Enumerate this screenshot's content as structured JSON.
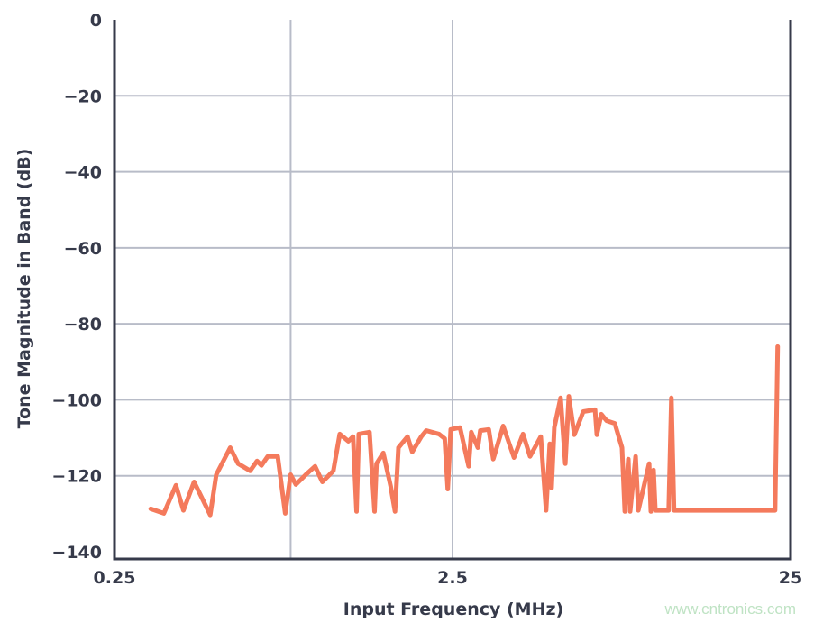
{
  "chart_data": {
    "type": "line",
    "title": "",
    "xlabel": "Input Frequency (MHz)",
    "ylabel": "Tone Magnitude in Band (dB)",
    "xscale": "log",
    "xlim": [
      0.25,
      25
    ],
    "ylim": [
      -140,
      0
    ],
    "x_ticks": [
      0.25,
      2.5,
      25
    ],
    "x_tick_labels": [
      "0.25",
      "2.5",
      "25"
    ],
    "y_ticks": [
      0,
      -20,
      -40,
      -60,
      -80,
      -100,
      -120,
      -140
    ],
    "y_tick_labels": [
      "0",
      "−20",
      "−40",
      "−60",
      "−80",
      "−100",
      "−120",
      "−140"
    ],
    "x_gridlines": [
      0.83,
      2.5
    ],
    "y_gridlines": [
      -20,
      -40,
      -60,
      -80,
      -100,
      -120
    ],
    "grid": true,
    "colors": {
      "series": "#f47a5c",
      "axis": "#363a4a",
      "grid": "#b8bcc8"
    },
    "series": [
      {
        "x": [
          0.32,
          0.35,
          0.38,
          0.4,
          0.43,
          0.48,
          0.5,
          0.55,
          0.58,
          0.63,
          0.66,
          0.68,
          0.71,
          0.76,
          0.8,
          0.83,
          0.86,
          0.92,
          0.98,
          1.03,
          1.11,
          1.16,
          1.23,
          1.27,
          1.3,
          1.32,
          1.42,
          1.47,
          1.49,
          1.56,
          1.64,
          1.69,
          1.73,
          1.84,
          1.9,
          2.02,
          2.09,
          2.28,
          2.37,
          2.42,
          2.47,
          2.63,
          2.79,
          2.84,
          2.97,
          3.02,
          3.2,
          3.3,
          3.53,
          3.8,
          4.04,
          4.24,
          4.56,
          4.73,
          4.85,
          4.91,
          5.0,
          5.22,
          5.39,
          5.52,
          5.73,
          6.09,
          6.6,
          6.68,
          6.89,
          7.14,
          7.55,
          7.93,
          8.08,
          8.28,
          8.38,
          8.7,
          8.86,
          9.54,
          9.65,
          9.83,
          9.95,
          10.9,
          11.1,
          11.3,
          22.5,
          22.9
        ],
        "y": [
          -128.7,
          -129.9,
          -122.5,
          -129.1,
          -121.6,
          -130.3,
          -119.7,
          -112.6,
          -116.8,
          -118.7,
          -116.1,
          -117.3,
          -114.9,
          -114.9,
          -129.9,
          -119.7,
          -122.3,
          -119.7,
          -117.5,
          -121.6,
          -118.7,
          -109.0,
          -110.9,
          -109.7,
          -129.4,
          -109.0,
          -108.5,
          -129.4,
          -116.8,
          -114.0,
          -122.7,
          -129.4,
          -112.6,
          -109.7,
          -113.7,
          -109.7,
          -108.1,
          -109.0,
          -110.2,
          -123.5,
          -107.8,
          -107.3,
          -117.5,
          -108.5,
          -112.6,
          -108.1,
          -107.8,
          -115.6,
          -106.9,
          -115.2,
          -109.0,
          -114.9,
          -109.7,
          -129.1,
          -111.6,
          -123.2,
          -107.3,
          -99.5,
          -116.8,
          -99.1,
          -109.2,
          -103.1,
          -102.6,
          -109.2,
          -103.8,
          -105.5,
          -106.2,
          -112.6,
          -129.4,
          -115.6,
          -129.4,
          -114.9,
          -129.1,
          -116.8,
          -129.4,
          -118.5,
          -129.1,
          -129.1,
          -99.5,
          -129.1,
          -129.1,
          -86.0
        ]
      }
    ]
  },
  "watermark": "www.cntronics.com"
}
